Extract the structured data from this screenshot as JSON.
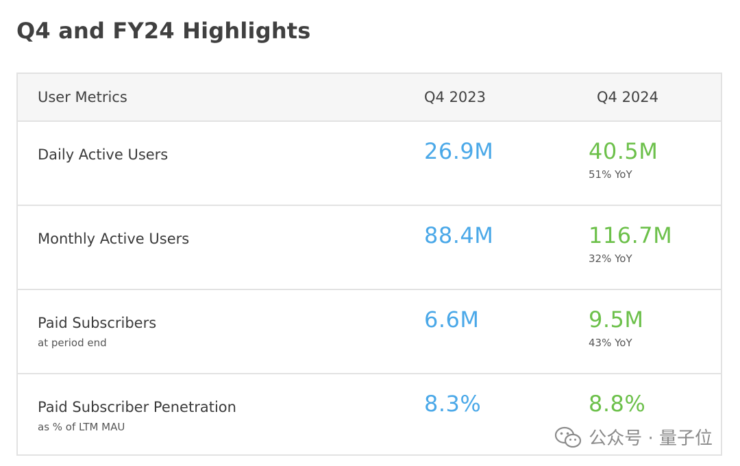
{
  "title": "Q4 and FY24 Highlights",
  "header": {
    "metric": "User Metrics",
    "col_2023": "Q4 2023",
    "col_2024": "Q4 2024"
  },
  "rows": [
    {
      "label": "Daily Active Users",
      "sublabel": "",
      "q4_2023": "26.9M",
      "q4_2024": "40.5M",
      "yoy": "51% YoY"
    },
    {
      "label": "Monthly Active Users",
      "sublabel": "",
      "q4_2023": "88.4M",
      "q4_2024": "116.7M",
      "yoy": "32% YoY"
    },
    {
      "label": "Paid Subscribers",
      "sublabel": "at period end",
      "q4_2023": "6.6M",
      "q4_2024": "9.5M",
      "yoy": "43% YoY"
    },
    {
      "label": "Paid Subscriber Penetration",
      "sublabel": "as % of LTM MAU",
      "q4_2023": "8.3%",
      "q4_2024": "8.8%",
      "yoy": ""
    }
  ],
  "watermark": {
    "text": "公众号 · 量子位",
    "icon": "wechat-icon"
  },
  "colors": {
    "q4_2023_value": "#4aa8e8",
    "q4_2024_value": "#6cc04a",
    "border": "#e2e2e2",
    "header_bg": "#f6f6f6"
  }
}
